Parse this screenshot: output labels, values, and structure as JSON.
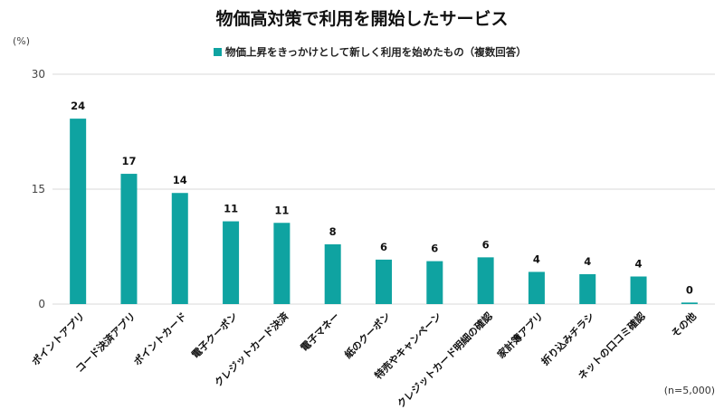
{
  "chart_data": {
    "type": "bar",
    "title": "物価高対策で利用を開始したサービス",
    "unit_label": "(%)",
    "note": "(n=5,000)",
    "series": [
      {
        "name": "物価上昇をきっかけとして新しく利用を始めたもの（複数回答）",
        "color": "#0fa3a1",
        "values": [
          24.2,
          17.0,
          14.5,
          10.8,
          10.6,
          7.8,
          5.8,
          5.6,
          6.1,
          4.2,
          3.9,
          3.6,
          0.2
        ]
      }
    ],
    "value_labels": [
      "24",
      "17",
      "14",
      "11",
      "11",
      "8",
      "6",
      "6",
      "6",
      "4",
      "4",
      "4",
      "0"
    ],
    "categories": [
      "ポイントアプリ",
      "コード決済アプリ",
      "ポイントカード",
      "電子クーポン",
      "クレジットカード決済",
      "電子マネー",
      "紙のクーポン",
      "特売やキャンペーン",
      "クレジットカード明細の確認",
      "家計簿アプリ",
      "折り込みチラシ",
      "ネットの口コミ確認",
      "その他"
    ],
    "yticks": [
      0,
      15,
      30
    ],
    "ylim": [
      0,
      30
    ],
    "grid": true,
    "legend_position": "top-center"
  }
}
